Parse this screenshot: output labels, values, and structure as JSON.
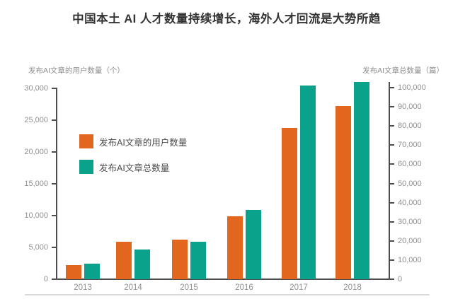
{
  "title": "中国本土 AI 人才数量持续增长，海外人才回流是大势所趋",
  "colors": {
    "orange": "#E2661E",
    "teal": "#0AA28A",
    "axis_line": "#4d4d4d",
    "tick_text": "#8f8f8f",
    "title_text": "#333333",
    "divider": "#d9d9d9"
  },
  "chart_data": {
    "type": "bar",
    "title": "中国本土 AI 人才数量持续增长，海外人才回流是大势所趋",
    "categories": [
      "2013",
      "2014",
      "2015",
      "2016",
      "2017",
      "2018"
    ],
    "series": [
      {
        "name": "发布AI文章的用户数量",
        "axis": "left",
        "color": "#E2661E",
        "values": [
          2200,
          5900,
          6200,
          9900,
          23800,
          27200
        ]
      },
      {
        "name": "发布AI文章总数量",
        "axis": "right",
        "color": "#0AA28A",
        "values": [
          8100,
          15500,
          19600,
          36000,
          101000,
          103000
        ]
      }
    ],
    "left_axis": {
      "title": "发布AI文章的用户数量（个）",
      "min": 0,
      "max": 30000,
      "tick_step": 5000,
      "tick_labels": [
        "0",
        "5,000",
        "10,000",
        "15,000",
        "20,000",
        "25,000",
        "30,000"
      ]
    },
    "right_axis": {
      "title": "发布AI文章总数量（篇）",
      "min": 0,
      "max": 100000,
      "tick_step": 10000,
      "tick_labels": [
        "0",
        "10,000",
        "20,000",
        "30,000",
        "40,000",
        "50,000",
        "60,000",
        "70,000",
        "80,000",
        "90,000",
        "100,000"
      ]
    },
    "legend": {
      "position": "inside-upper-left"
    },
    "grid": false
  }
}
